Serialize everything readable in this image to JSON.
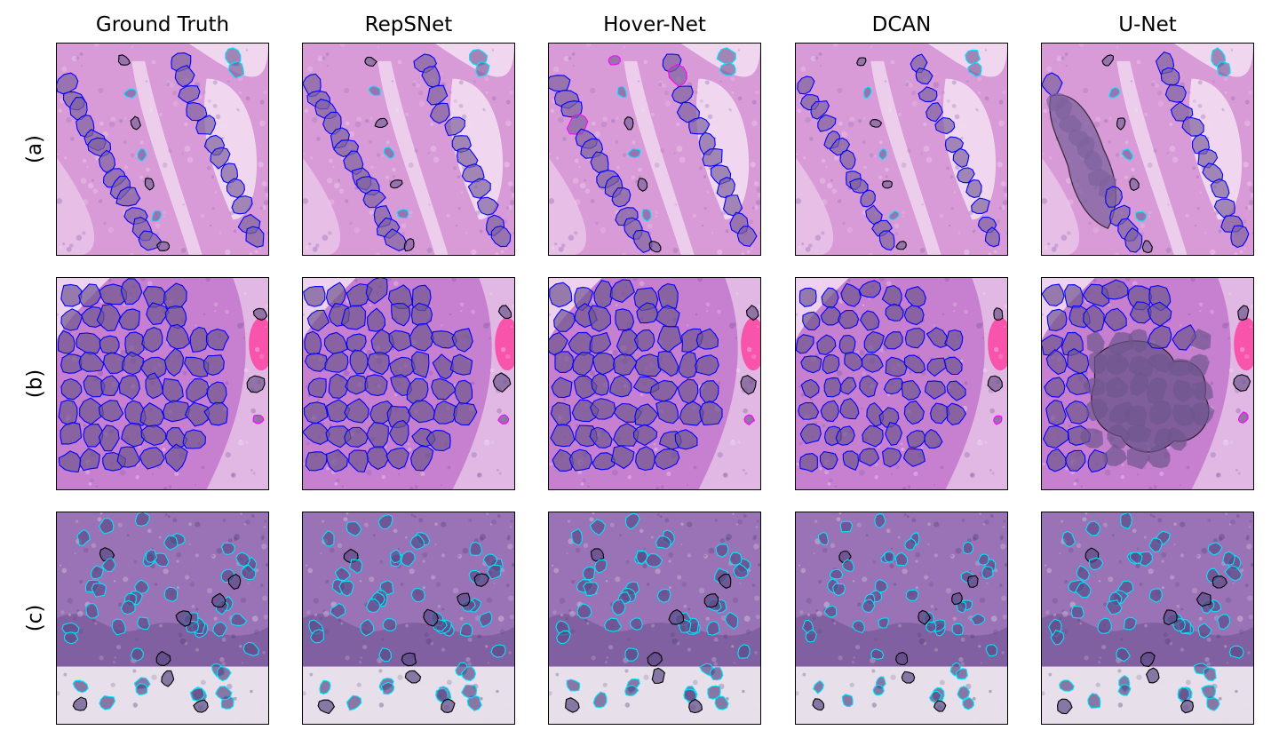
{
  "columns": [
    "Ground Truth",
    "RepSNet",
    "Hover-Net",
    "DCAN",
    "U-Net"
  ],
  "rows": [
    "(a)",
    "(b)",
    "(c)"
  ],
  "legend_colors": {
    "class_blue": "#0000ff",
    "class_cyan": "#00e5ff",
    "class_black": "#000000",
    "class_magenta": "#ff00ff"
  },
  "tissue_colors": {
    "a": {
      "base": "#d99ad8",
      "light": "#f3e2f3",
      "dark": "#8a6aa8",
      "nucleus": "#7e639e"
    },
    "b": {
      "base": "#c77fcf",
      "light": "#f6e6f6",
      "dark": "#7a5a9c",
      "nucleus": "#6f568f"
    },
    "c": {
      "base": "#9a72b6",
      "light": "#e7dfe9",
      "dark": "#4f3f78",
      "nucleus": "#5e4a86"
    }
  }
}
